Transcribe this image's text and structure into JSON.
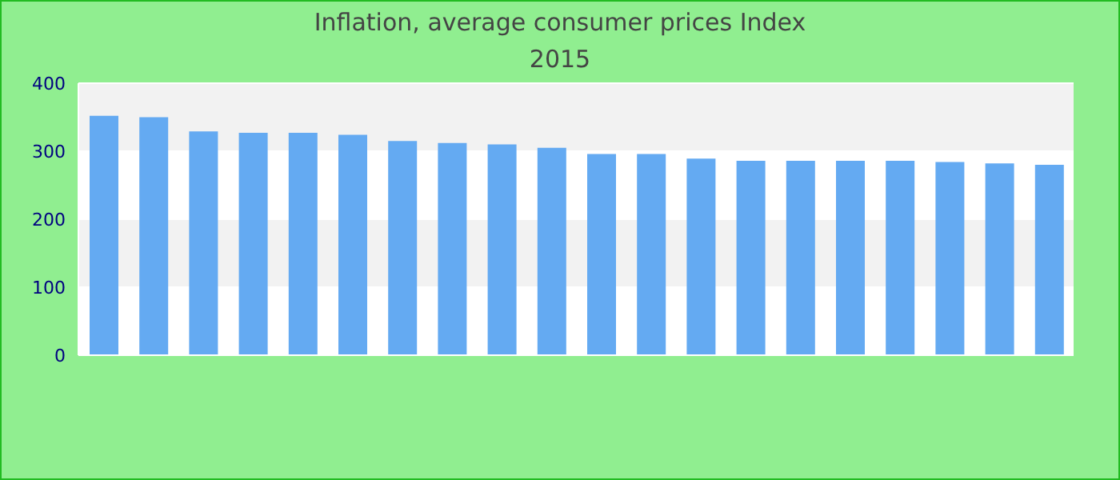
{
  "chart_data": {
    "type": "bar",
    "title": "Inflation, average consumer prices  Index",
    "subtitle": "2015",
    "categories": [
      null,
      null,
      null,
      null,
      null,
      null,
      null,
      null,
      null,
      null,
      null,
      null,
      null,
      null,
      null,
      null,
      null,
      null,
      null,
      null
    ],
    "values": [
      352,
      350,
      329,
      327,
      327,
      324,
      315,
      312,
      310,
      305,
      296,
      296,
      289,
      286,
      286,
      286,
      286,
      284,
      282,
      280
    ],
    "color": "#64aaf2",
    "ylim": [
      0,
      400
    ],
    "yticks": [
      0,
      100,
      200,
      300,
      400
    ],
    "grid": "y"
  }
}
